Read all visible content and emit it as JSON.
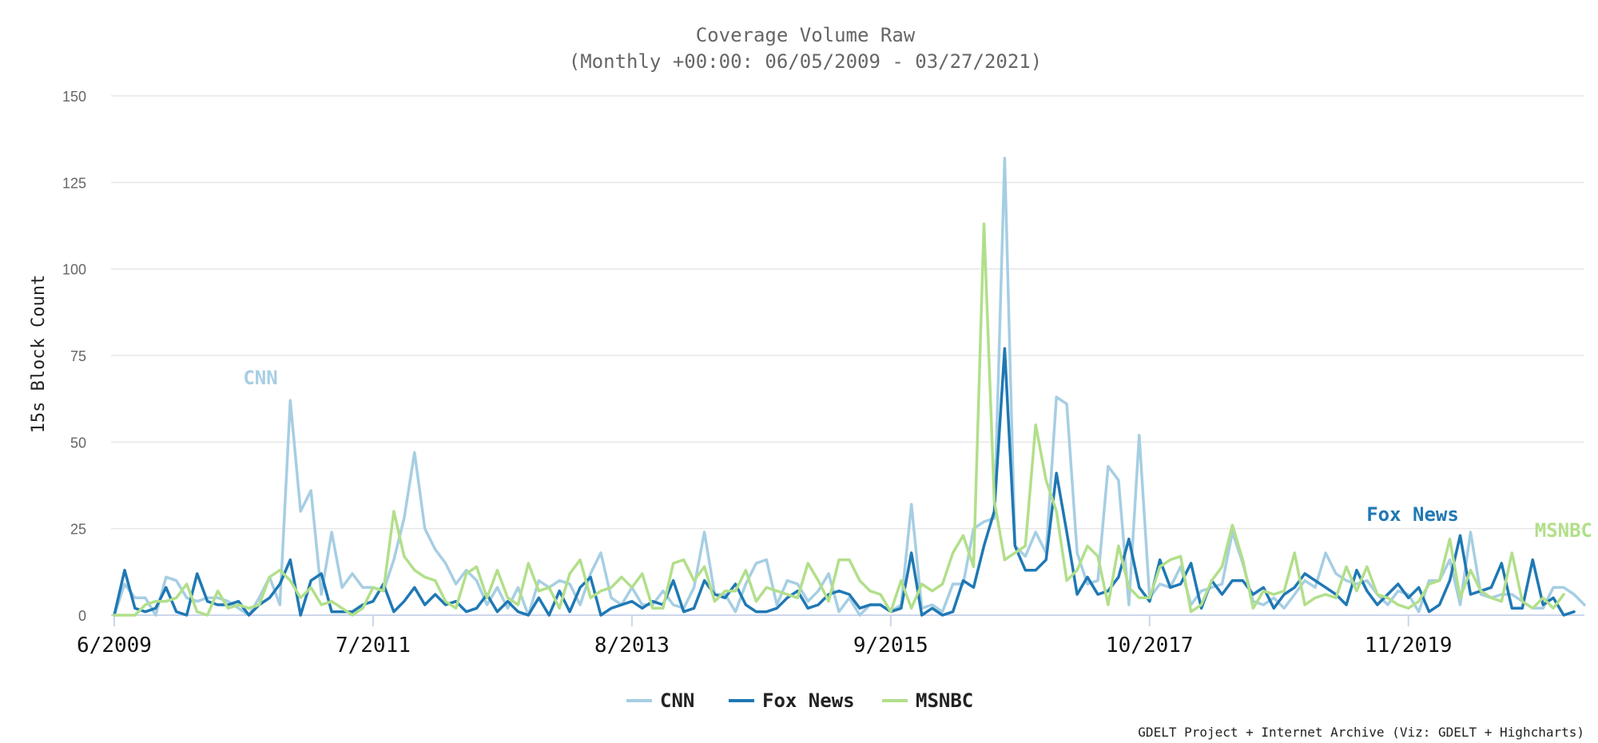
{
  "chart_data": {
    "type": "line",
    "title": "Coverage Volume Raw",
    "subtitle": "(Monthly +00:00: 06/05/2009 - 03/27/2021)",
    "ylabel": "15s Block Count",
    "xlabel": "",
    "ylim": [
      0,
      150
    ],
    "yticks": [
      "0",
      "25",
      "50",
      "75",
      "100",
      "125",
      "150"
    ],
    "xtick_labels": [
      {
        "label": "6/2009",
        "index": 0
      },
      {
        "label": "7/2011",
        "index": 25
      },
      {
        "label": "8/2013",
        "index": 50
      },
      {
        "label": "9/2015",
        "index": 75
      },
      {
        "label": "10/2017",
        "index": 100
      },
      {
        "label": "11/2019",
        "index": 125
      }
    ],
    "grid": true,
    "legend_position": "bottom-center",
    "credits": "GDELT Project + Internet Archive (Viz: GDELT + Highcharts)",
    "series": [
      {
        "name": "CNN",
        "color": "#a6cee3",
        "label": "CNN",
        "values": [
          0,
          9,
          5,
          5,
          0,
          11,
          10,
          5,
          4,
          5,
          5,
          4,
          2,
          0,
          5,
          11,
          3,
          62,
          30,
          36,
          6,
          24,
          8,
          12,
          8,
          8,
          7,
          16,
          28,
          47,
          25,
          19,
          15,
          9,
          13,
          10,
          3,
          8,
          2,
          8,
          0,
          10,
          8,
          10,
          9,
          3,
          12,
          18,
          5,
          3,
          8,
          3,
          3,
          7,
          3,
          2,
          8,
          24,
          6,
          6,
          1,
          9,
          15,
          16,
          3,
          10,
          9,
          4,
          7,
          12,
          1,
          5,
          0,
          3,
          3,
          1,
          3,
          32,
          2,
          3,
          1,
          9,
          9,
          25,
          27,
          28,
          132,
          20,
          17,
          24,
          18,
          63,
          61,
          18,
          9,
          10,
          43,
          39,
          3,
          52,
          5,
          9,
          8,
          14,
          3,
          7,
          8,
          9,
          24,
          15,
          4,
          3,
          5,
          2,
          6,
          10,
          8,
          18,
          12,
          10,
          9,
          10,
          6,
          3,
          7,
          6,
          1,
          10,
          10,
          16,
          3,
          24,
          6,
          5,
          6,
          6,
          4,
          2,
          2,
          8,
          8,
          6,
          3
        ]
      },
      {
        "name": "Fox News",
        "color": "#1f78b4",
        "label": "Fox News",
        "values": [
          0,
          13,
          2,
          1,
          2,
          8,
          1,
          0,
          12,
          4,
          3,
          3,
          4,
          0,
          3,
          5,
          9,
          16,
          0,
          10,
          12,
          1,
          1,
          1,
          3,
          4,
          9,
          1,
          4,
          8,
          3,
          6,
          3,
          4,
          1,
          2,
          6,
          1,
          4,
          1,
          0,
          5,
          0,
          7,
          1,
          8,
          11,
          0,
          2,
          3,
          4,
          2,
          4,
          3,
          10,
          1,
          2,
          10,
          6,
          5,
          9,
          3,
          1,
          1,
          2,
          5,
          7,
          2,
          3,
          6,
          7,
          6,
          2,
          3,
          3,
          1,
          2,
          18,
          0,
          2,
          0,
          1,
          10,
          8,
          20,
          30,
          77,
          20,
          13,
          13,
          16,
          41,
          24,
          6,
          11,
          6,
          7,
          11,
          22,
          8,
          4,
          16,
          8,
          9,
          15,
          2,
          10,
          6,
          10,
          10,
          6,
          8,
          2,
          6,
          8,
          12,
          10,
          8,
          6,
          3,
          13,
          7,
          3,
          6,
          9,
          5,
          8,
          1,
          3,
          10,
          23,
          6,
          7,
          8,
          15,
          2,
          2,
          16,
          3,
          5,
          0,
          1
        ]
      },
      {
        "name": "MSNBC",
        "color": "#b2df8a",
        "label": "MSNBC",
        "values": [
          0,
          0,
          0,
          3,
          4,
          4,
          5,
          9,
          1,
          0,
          7,
          2,
          3,
          2,
          3,
          11,
          13,
          10,
          5,
          8,
          3,
          4,
          2,
          0,
          2,
          8,
          7,
          30,
          17,
          13,
          11,
          10,
          4,
          2,
          12,
          14,
          5,
          13,
          5,
          3,
          15,
          7,
          8,
          2,
          12,
          16,
          5,
          7,
          8,
          11,
          8,
          12,
          2,
          2,
          15,
          16,
          10,
          14,
          4,
          7,
          7,
          13,
          4,
          8,
          7,
          6,
          5,
          15,
          10,
          4,
          16,
          16,
          10,
          7,
          6,
          1,
          10,
          2,
          9,
          7,
          9,
          18,
          23,
          14,
          113,
          33,
          16,
          18,
          20,
          55,
          39,
          30,
          10,
          13,
          20,
          17,
          3,
          20,
          8,
          5,
          5,
          14,
          16,
          17,
          1,
          3,
          10,
          14,
          26,
          16,
          2,
          7,
          6,
          7,
          18,
          3,
          5,
          6,
          5,
          14,
          7,
          14,
          6,
          5,
          3,
          2,
          4,
          9,
          10,
          22,
          5,
          13,
          7,
          5,
          4,
          18,
          4,
          2,
          5,
          2,
          6
        ]
      }
    ]
  }
}
